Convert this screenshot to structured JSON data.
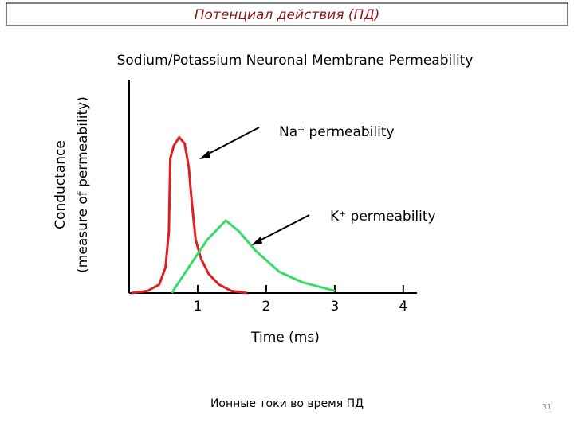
{
  "slide": {
    "title": "Потенциал действия (ПД)",
    "caption": "Ионные токи во время ПД",
    "page_number": "31"
  },
  "chart_data": {
    "type": "line",
    "title": "Sodium/Potassium Neuronal Membrane Permeability",
    "xlabel": "Time (ms)",
    "ylabel": [
      "Conductance",
      "(measure of permeability)"
    ],
    "xlim": [
      0,
      4.2
    ],
    "xticks": [
      1,
      2,
      3,
      4
    ],
    "ylim": [
      0,
      1
    ],
    "series": [
      {
        "name": "Na⁺ permeability",
        "color": "#e02020",
        "x": [
          0.03,
          0.27,
          0.44,
          0.53,
          0.58,
          0.6,
          0.65,
          0.73,
          0.81,
          0.87,
          0.91,
          0.97,
          1.05,
          1.16,
          1.31,
          1.49,
          1.72
        ],
        "values": [
          0,
          0.01,
          0.04,
          0.12,
          0.29,
          0.63,
          0.69,
          0.73,
          0.7,
          0.59,
          0.44,
          0.25,
          0.16,
          0.09,
          0.04,
          0.01,
          0
        ]
      },
      {
        "name": "K⁺ permeability",
        "color": "#33dd66",
        "x": [
          0.62,
          0.91,
          1.14,
          1.41,
          1.6,
          1.84,
          2.19,
          2.53,
          3.0
        ],
        "values": [
          0,
          0.14,
          0.25,
          0.34,
          0.29,
          0.2,
          0.1,
          0.05,
          0.01
        ]
      }
    ]
  }
}
